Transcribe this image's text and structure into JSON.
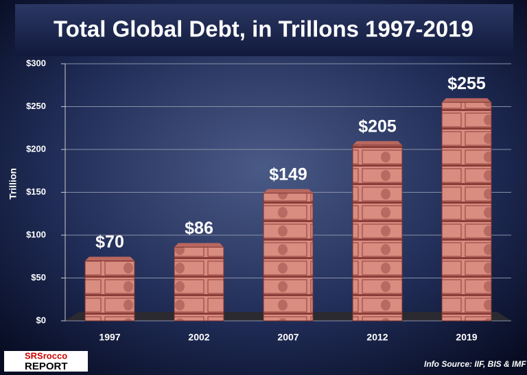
{
  "chart_data": {
    "type": "bar",
    "title": "Total Global Debt, in Trillons 1997-2019",
    "y_label": "Trillion",
    "categories": [
      "1997",
      "2002",
      "2007",
      "2012",
      "2019"
    ],
    "values": [
      70,
      86,
      149,
      205,
      255
    ],
    "value_labels": [
      "$70",
      "$86",
      "$149",
      "$205",
      "$255"
    ],
    "color": "#d98c80",
    "ylim": [
      0,
      300
    ],
    "yticks": [
      {
        "value": 0,
        "label": "$0"
      },
      {
        "value": 50,
        "label": "$50"
      },
      {
        "value": 100,
        "label": "$100"
      },
      {
        "value": 150,
        "label": "$150"
      },
      {
        "value": 200,
        "label": "$200"
      },
      {
        "value": 250,
        "label": "$250"
      },
      {
        "value": 300,
        "label": "$300"
      }
    ],
    "grid": true,
    "source": "Info Source: IIF, BIS & IMF",
    "logo": [
      "SRSrocco",
      "REPORT"
    ]
  }
}
